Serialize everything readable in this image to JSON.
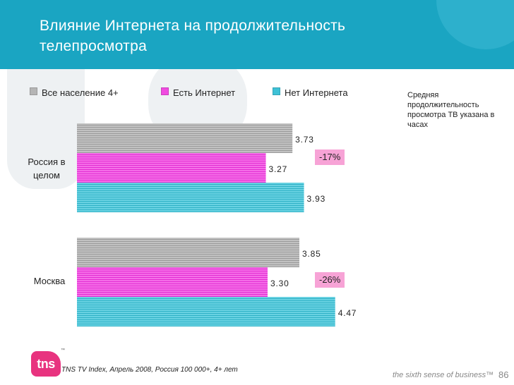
{
  "header": {
    "title": "Влияние Интернета на продолжительность телепросмотра"
  },
  "legend": {
    "items": [
      {
        "label": "Все  население 4+",
        "color": "#b5b5b5"
      },
      {
        "label": "Есть Интернет",
        "color": "#f04be0"
      },
      {
        "label": "Нет Интернета",
        "color": "#3ec1d6"
      }
    ]
  },
  "note": "Средняя продолжительность просмотра ТВ указана в часах",
  "chart_data": {
    "type": "bar",
    "orientation": "horizontal",
    "categories": [
      "Россия в целом",
      "Москва"
    ],
    "series": [
      {
        "name": "Все  население 4+",
        "values": [
          3.73,
          3.85
        ],
        "color": "#b5b5b5"
      },
      {
        "name": "Есть Интернет",
        "values": [
          3.27,
          3.3
        ],
        "color": "#f04be0"
      },
      {
        "name": "Нет Интернета",
        "values": [
          3.93,
          4.47
        ],
        "color": "#3ec1d6"
      }
    ],
    "value_labels": [
      [
        "3.73",
        "3.27",
        "3.93"
      ],
      [
        "3.85",
        "3.30",
        "4.47"
      ]
    ],
    "annotations": [
      "-17%",
      "-26%"
    ],
    "xlim": [
      0,
      5.5
    ],
    "title": "",
    "xlabel": "",
    "ylabel": ""
  },
  "footer": {
    "source": "TNS TV Index,  Апрель 2008, Россия 100 000+, 4+ лет",
    "logo": "tns",
    "tagline": "the sixth sense of business™",
    "page_number": "86"
  }
}
